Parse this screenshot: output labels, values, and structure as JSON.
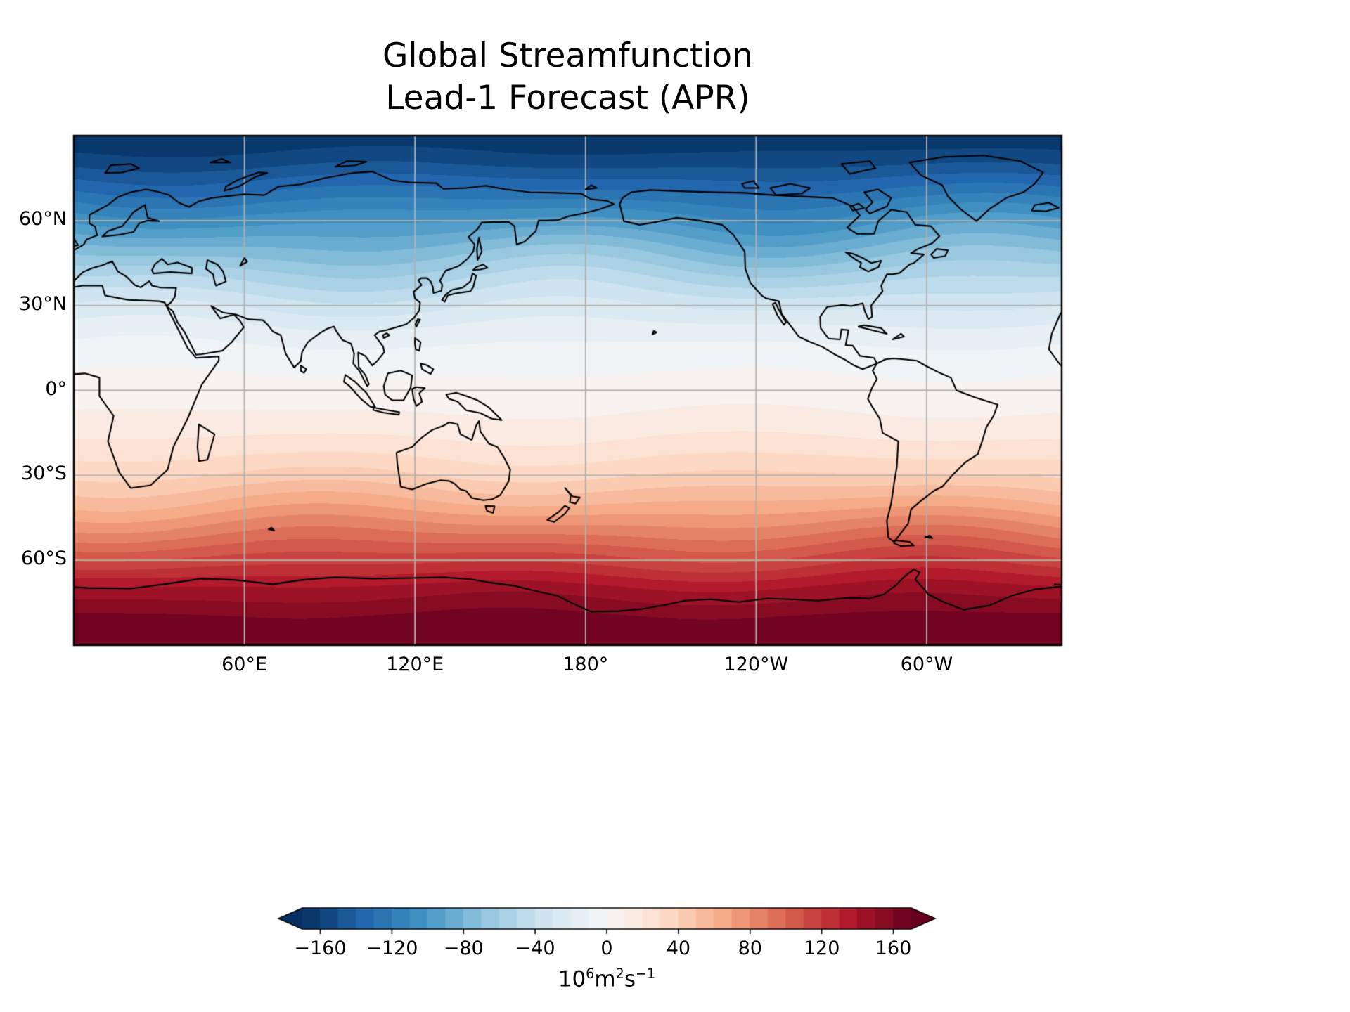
{
  "figure": {
    "title_lines": [
      "Global Streamfunction",
      "Lead-1 Forecast (APR)"
    ],
    "background": "#ffffff",
    "text_color": "#000000"
  },
  "map": {
    "x_ticks": [
      {
        "label": "60°E",
        "lon": 60
      },
      {
        "label": "120°E",
        "lon": 120
      },
      {
        "label": "180°",
        "lon": 180
      },
      {
        "label": "120°W",
        "lon": 240
      },
      {
        "label": "60°W",
        "lon": 300
      }
    ],
    "y_ticks": [
      {
        "label": "60°N",
        "lat": 60
      },
      {
        "label": "30°N",
        "lat": 30
      },
      {
        "label": "0°",
        "lat": 0
      },
      {
        "label": "30°S",
        "lat": -30
      },
      {
        "label": "60°S",
        "lat": -60
      }
    ],
    "grid_color": "#b0b0b0",
    "coast_color": "#000000",
    "frame_color": "#000000"
  },
  "colorbar": {
    "ticks": [
      {
        "label": "−160",
        "value": -160
      },
      {
        "label": "−120",
        "value": -120
      },
      {
        "label": "−80",
        "value": -80
      },
      {
        "label": "−40",
        "value": -40
      },
      {
        "label": "0",
        "value": 0
      },
      {
        "label": "40",
        "value": 40
      },
      {
        "label": "80",
        "value": 80
      },
      {
        "label": "120",
        "value": 120
      },
      {
        "label": "160",
        "value": 160
      }
    ],
    "unit": {
      "coef": "10",
      "coef_exp": "6",
      "m": "m",
      "m_exp": "2",
      "s": "s",
      "s_exp": "−1"
    },
    "vmin": -170,
    "vmax": 170,
    "level_step": 10,
    "extend": "both",
    "cmap_name": "RdBu_r",
    "cmap_anchors": [
      "#053061",
      "#2166ac",
      "#4393c3",
      "#92c5de",
      "#d1e5f0",
      "#f7f7f7",
      "#fddbc7",
      "#f4a582",
      "#d6604d",
      "#b2182b",
      "#67001f"
    ]
  },
  "chart_data": {
    "type": "heatmap",
    "title": "Global Streamfunction Lead-1 Forecast (APR)",
    "projection": "global lat-lon map, 0°E at left edge through 360°E, 90°N top to 90°S bottom, coastlines overlaid",
    "x_tick_labels": [
      "60°E",
      "120°E",
      "180°",
      "120°W",
      "60°W"
    ],
    "y_tick_labels": [
      "60°N",
      "30°N",
      "0°",
      "30°S",
      "60°S"
    ],
    "colorbar_label": "10^6 m^2 s^-1",
    "colorbar_ticks": [
      -160,
      -120,
      -80,
      -40,
      0,
      40,
      80,
      120,
      160
    ],
    "value_range": [
      -170,
      170
    ],
    "contour_level_step": 10,
    "colormap": "RdBu_r (blue negative, white near zero, dark red positive)",
    "grid": true,
    "legend_position": "horizontal colorbar below map, extended arrows both ends",
    "field_description": "streamfunction is nearly zonally uniform: strongly negative at high northern latitudes, near zero around the equator, strongly positive toward Antarctica",
    "zonal_profile": {
      "lat": [
        90,
        80,
        70,
        60,
        50,
        40,
        30,
        20,
        10,
        0,
        -10,
        -20,
        -30,
        -40,
        -50,
        -60,
        -70,
        -80,
        -90
      ],
      "value": [
        -170,
        -152,
        -128,
        -102,
        -76,
        -52,
        -31,
        -14,
        -3,
        4,
        12,
        24,
        40,
        62,
        88,
        115,
        143,
        162,
        172
      ]
    }
  }
}
